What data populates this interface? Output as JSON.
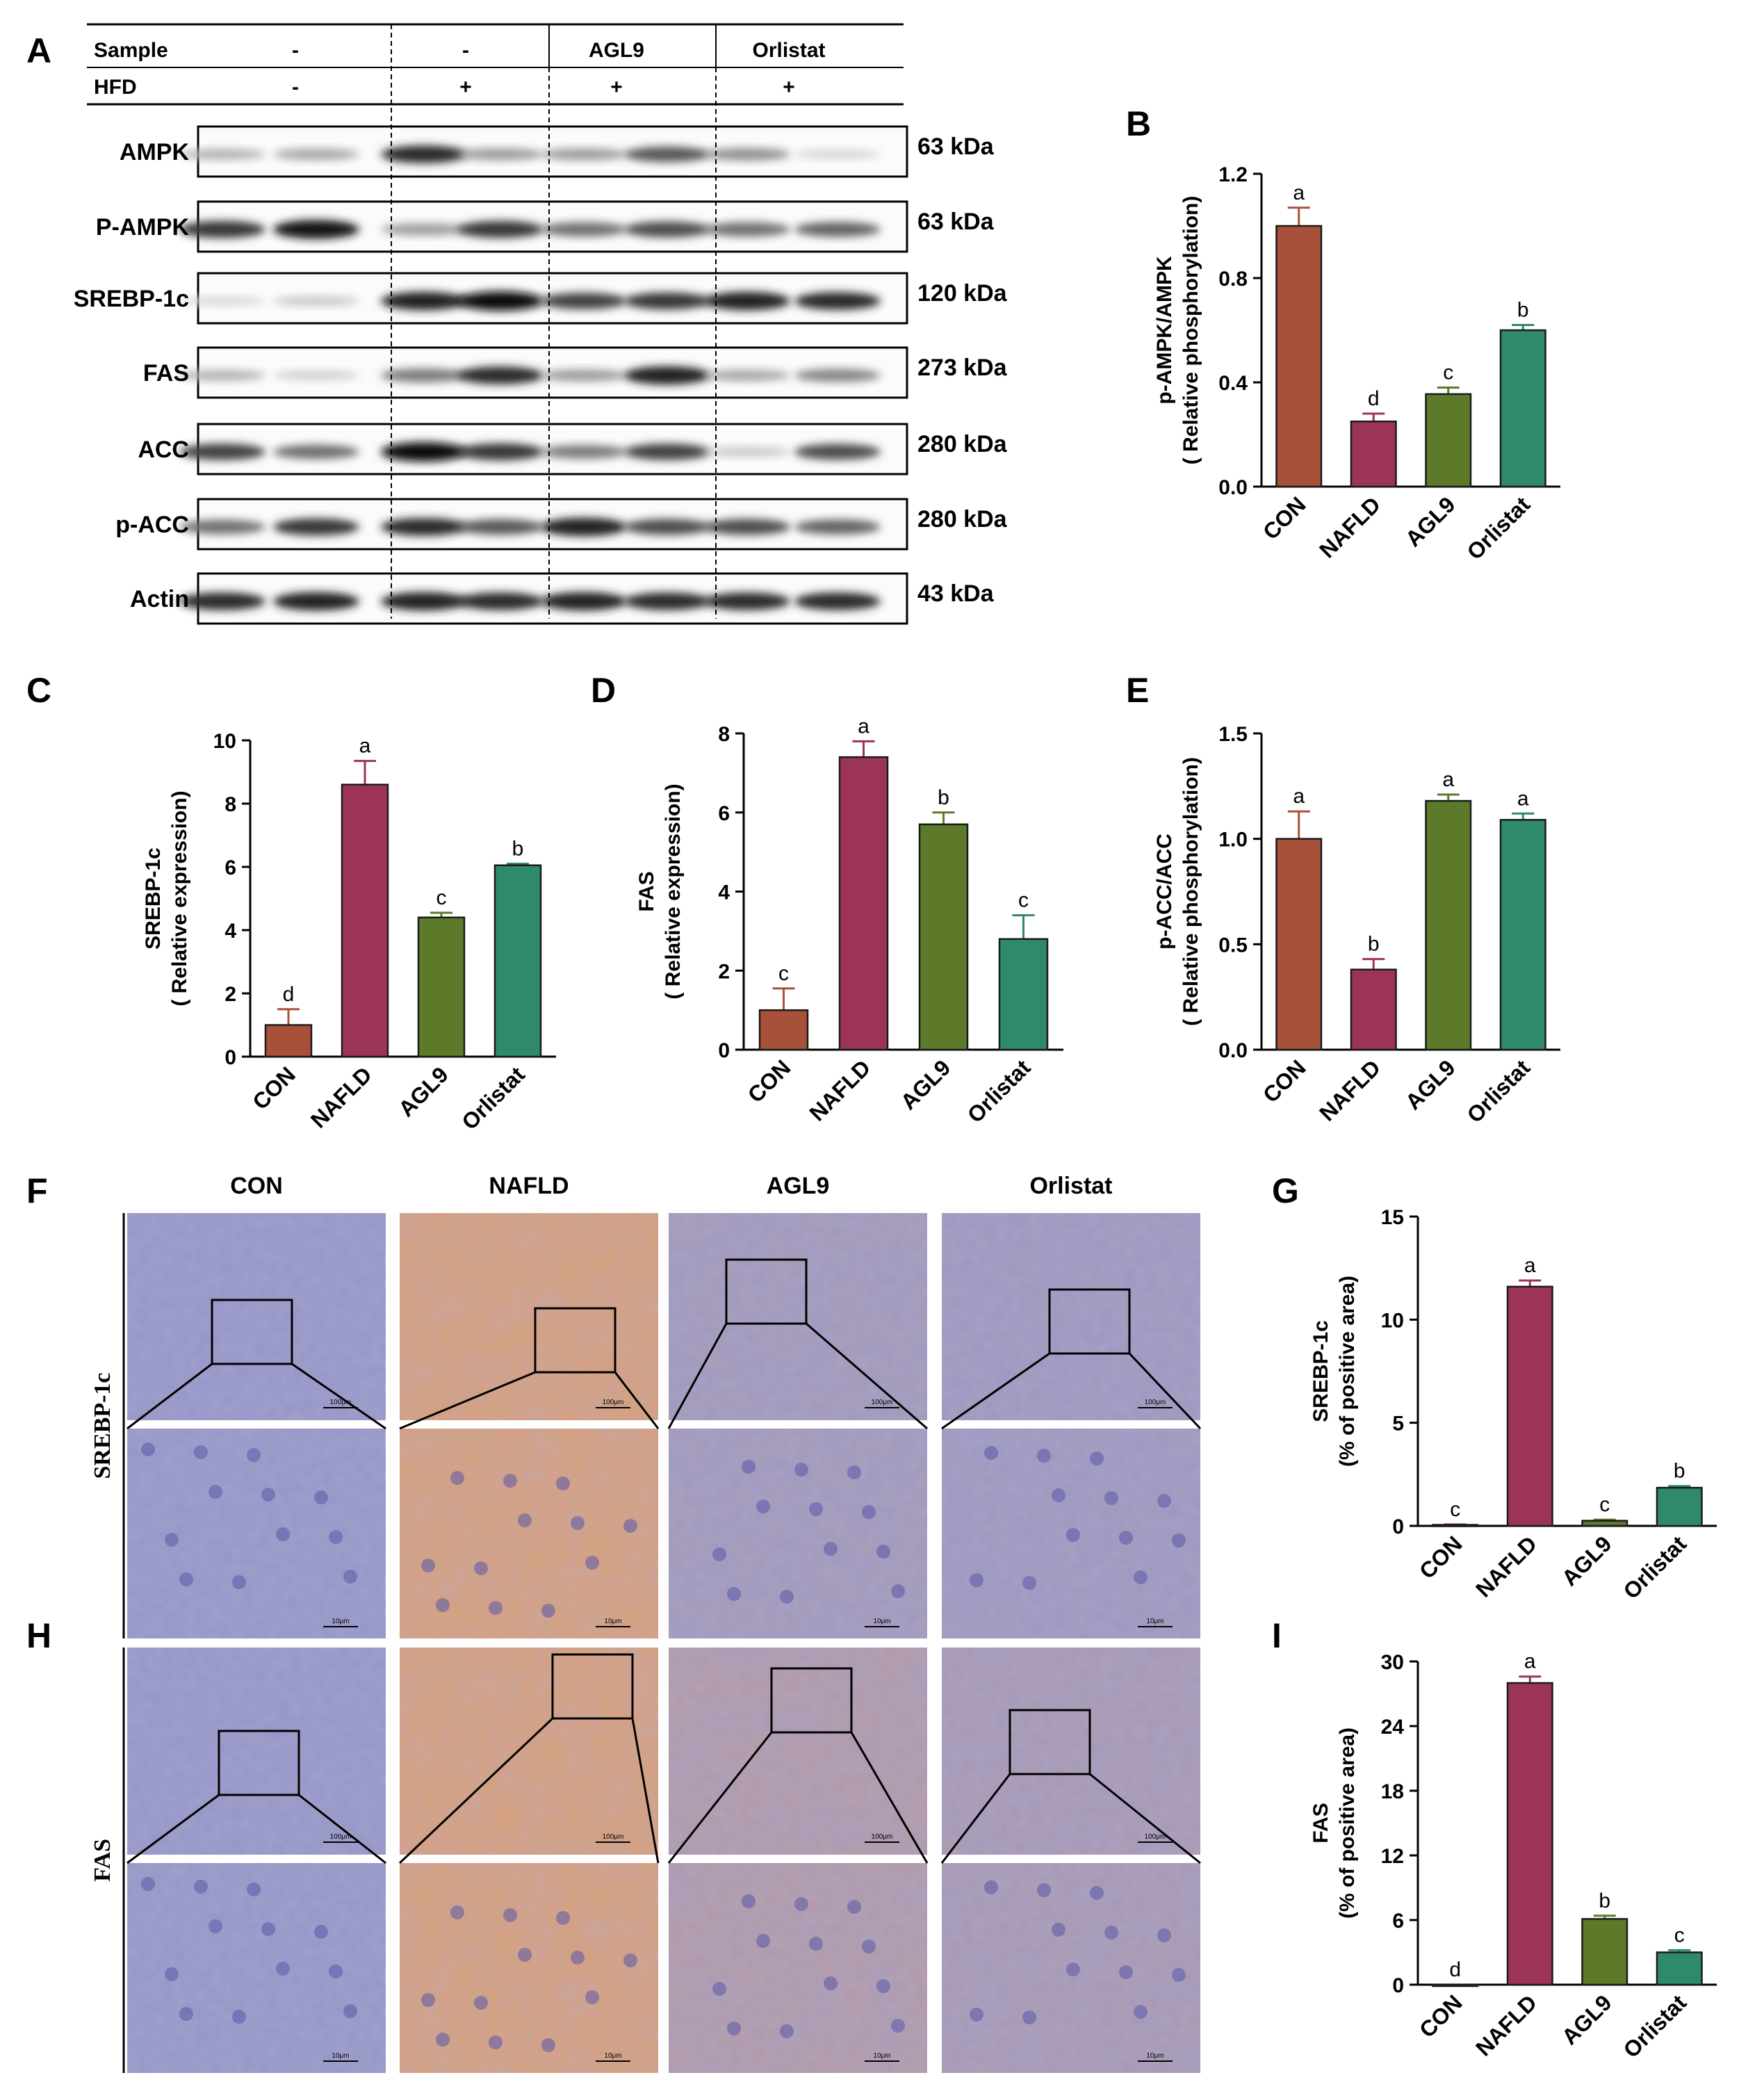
{
  "panel_letters": {
    "a": "A",
    "b": "B",
    "c": "C",
    "d": "D",
    "e": "E",
    "f": "F",
    "g": "G",
    "h": "H",
    "i": "I"
  },
  "western_blot": {
    "header_rows": [
      {
        "label": "Sample",
        "values": [
          "-",
          "-",
          "AGL9",
          "Orlistat"
        ]
      },
      {
        "label": "HFD",
        "values": [
          "-",
          "+",
          "+",
          "+"
        ]
      }
    ],
    "proteins": [
      {
        "name": "AMPK",
        "kda": "63 kDa"
      },
      {
        "name": "P-AMPK",
        "kda": "63 kDa"
      },
      {
        "name": "SREBP-1c",
        "kda": "120 kDa"
      },
      {
        "name": "FAS",
        "kda": "273 kDa"
      },
      {
        "name": "ACC",
        "kda": "280 kDa"
      },
      {
        "name": "p-ACC",
        "kda": "280 kDa"
      },
      {
        "name": "Actin",
        "kda": "43 kDa"
      }
    ]
  },
  "ihc": {
    "columns": [
      "CON",
      "NAFLD",
      "AGL9",
      "Orlistat"
    ],
    "rows": [
      "SREBP-1c",
      "FAS"
    ],
    "scalebar_large": "100μm",
    "scalebar_small": "10μm"
  },
  "chart_data": [
    {
      "id": "B",
      "type": "bar",
      "categories": [
        "CON",
        "NAFLD",
        "AGL9",
        "Orlistat"
      ],
      "values": [
        1.0,
        0.25,
        0.355,
        0.6
      ],
      "errors": [
        0.07,
        0.03,
        0.025,
        0.02
      ],
      "letters": [
        "a",
        "d",
        "c",
        "b"
      ],
      "ylabel": [
        "p-AMPK/AMPK",
        "( Relative phosphorylation)"
      ],
      "ylim": [
        0,
        1.2
      ],
      "yticks": [
        "0.0",
        "0.4",
        "0.8",
        "1.2"
      ]
    },
    {
      "id": "C",
      "type": "bar",
      "categories": [
        "CON",
        "NAFLD",
        "AGL9",
        "Orlistat"
      ],
      "values": [
        1.0,
        8.6,
        4.4,
        6.05
      ],
      "errors": [
        0.5,
        0.75,
        0.15,
        0.05
      ],
      "letters": [
        "d",
        "a",
        "c",
        "b"
      ],
      "ylabel": [
        "SREBP-1c",
        "( Relative expression)"
      ],
      "ylim": [
        0,
        10
      ],
      "yticks": [
        "0",
        "2",
        "4",
        "6",
        "8",
        "10"
      ]
    },
    {
      "id": "D",
      "type": "bar",
      "categories": [
        "CON",
        "NAFLD",
        "AGL9",
        "Orlistat"
      ],
      "values": [
        1.0,
        7.4,
        5.7,
        2.8
      ],
      "errors": [
        0.55,
        0.4,
        0.3,
        0.6
      ],
      "letters": [
        "c",
        "a",
        "b",
        "c"
      ],
      "ylabel": [
        "FAS",
        "( Relative expression)"
      ],
      "ylim": [
        0,
        8
      ],
      "yticks": [
        "0",
        "2",
        "4",
        "6",
        "8"
      ]
    },
    {
      "id": "E",
      "type": "bar",
      "categories": [
        "CON",
        "NAFLD",
        "AGL9",
        "Orlistat"
      ],
      "values": [
        1.0,
        0.38,
        1.18,
        1.09
      ],
      "errors": [
        0.13,
        0.05,
        0.03,
        0.03
      ],
      "letters": [
        "a",
        "b",
        "a",
        "a"
      ],
      "ylabel": [
        "p-ACC/ACC",
        "( Relative phosphorylation)"
      ],
      "ylim": [
        0,
        1.5
      ],
      "yticks": [
        "0.0",
        "0.5",
        "1.0",
        "1.5"
      ]
    },
    {
      "id": "G",
      "type": "bar",
      "categories": [
        "CON",
        "NAFLD",
        "AGL9",
        "Orlistat"
      ],
      "values": [
        0.05,
        11.6,
        0.25,
        1.85
      ],
      "errors": [
        0.02,
        0.3,
        0.05,
        0.08
      ],
      "letters": [
        "c",
        "a",
        "c",
        "b"
      ],
      "ylabel": [
        "SREBP-1c",
        "(% of positive area)"
      ],
      "ylim": [
        0,
        15
      ],
      "yticks": [
        "0",
        "5",
        "10",
        "15"
      ]
    },
    {
      "id": "I",
      "type": "bar",
      "categories": [
        "CON",
        "NAFLD",
        "AGL9",
        "Orlistat"
      ],
      "values": [
        0,
        28.0,
        6.1,
        3.0
      ],
      "errors": [
        0,
        0.6,
        0.3,
        0.2
      ],
      "letters": [
        "d",
        "a",
        "b",
        "c"
      ],
      "ylabel": [
        "FAS",
        "(% of positive area)"
      ],
      "ylim": [
        0,
        30
      ],
      "yticks": [
        "0",
        "6",
        "12",
        "18",
        "24",
        "30"
      ]
    }
  ],
  "colors": {
    "CON": "#a8513a",
    "NAFLD": "#9c3457",
    "AGL9": "#5c7a2a",
    "Orlistat": "#2e8a6a"
  }
}
